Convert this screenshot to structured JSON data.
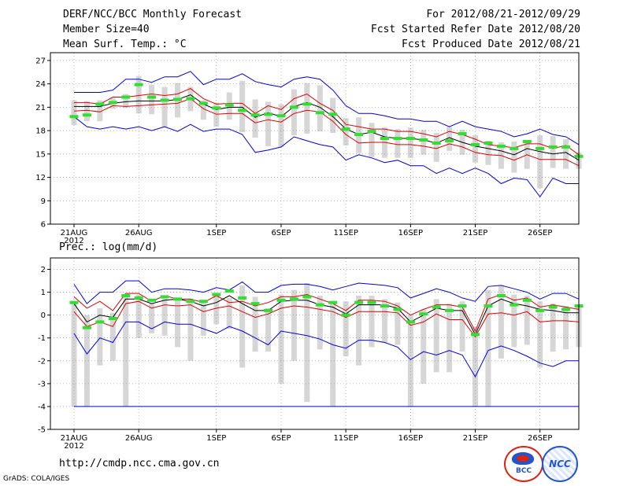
{
  "header": {
    "title": "DERF/NCC/BCC Monthly Forecast",
    "member_size": "Member Size=40",
    "variable": "Mean Surf. Temp.: °C",
    "forecast_period": "For 2012/08/21-2012/09/29",
    "started_refer": "Fcst Started Refer Date 2012/08/20",
    "produced": "Fcst Produced Date 2012/08/21"
  },
  "footer": {
    "url": "http://cmdp.ncc.cma.gov.cn",
    "credit": "GrADS: COLA/IGES",
    "logo_bcc": "BCC",
    "logo_ncc": "NCC"
  },
  "colors": {
    "box": "#d6d6d6",
    "ensemble_envelope": "#0000dd",
    "spread": "#dd0000",
    "mean": "#000000",
    "observed": "#33dd33",
    "grid": "#888888"
  },
  "chart_data": [
    {
      "type": "line",
      "title": "Mean Surf. Temp.: °C",
      "xlabel": "",
      "ylabel": "°C",
      "ylim": [
        6,
        28
      ],
      "yticks": [
        6,
        9,
        12,
        15,
        18,
        21,
        24,
        27
      ],
      "xticks": [
        {
          "day": 1,
          "label": "21AUG"
        },
        {
          "day": 6,
          "label": "26AUG"
        },
        {
          "day": 12,
          "label": "1SEP"
        },
        {
          "day": 17,
          "label": "6SEP"
        },
        {
          "day": 22,
          "label": "11SEP"
        },
        {
          "day": 27,
          "label": "16SEP"
        },
        {
          "day": 32,
          "label": "21SEP"
        },
        {
          "day": 37,
          "label": "26SEP"
        }
      ],
      "year_label": "2012",
      "grid": true,
      "days": [
        1,
        2,
        3,
        4,
        5,
        6,
        7,
        8,
        9,
        10,
        11,
        12,
        13,
        14,
        15,
        16,
        17,
        18,
        19,
        20,
        21,
        22,
        23,
        24,
        25,
        26,
        27,
        28,
        29,
        30,
        31,
        32,
        33,
        34,
        35,
        36,
        37,
        38,
        39,
        40
      ],
      "series": [
        {
          "name": "max",
          "values": [
            22.9,
            22.9,
            22.9,
            23.2,
            24.6,
            24.6,
            24.2,
            24.9,
            24.9,
            25.6,
            23.9,
            24.6,
            24.6,
            25.3,
            24.3,
            23.9,
            23.6,
            24.6,
            24.9,
            24.6,
            23.2,
            21.2,
            20.2,
            20.2,
            19.9,
            19.5,
            19.5,
            19.2,
            19.2,
            18.5,
            19.2,
            18.5,
            18.2,
            17.9,
            17.2,
            17.6,
            18.2,
            17.5,
            17.2,
            16.2
          ]
        },
        {
          "name": "upper",
          "values": [
            21.6,
            21.6,
            21.4,
            22.3,
            22.3,
            22.5,
            22.7,
            22.5,
            22.7,
            23.4,
            22.1,
            21.4,
            21.5,
            21.5,
            20.2,
            21.2,
            20.7,
            22.1,
            22.7,
            21.5,
            20.6,
            18.8,
            18.5,
            18.2,
            18.2,
            17.9,
            17.9,
            17.6,
            17.2,
            17.9,
            17.5,
            16.9,
            16.2,
            16.0,
            15.8,
            16.3,
            16.3,
            15.7,
            16.1,
            14.9
          ]
        },
        {
          "name": "mean",
          "values": [
            21.1,
            21.1,
            21.1,
            21.5,
            21.7,
            21.8,
            21.8,
            21.8,
            22.0,
            22.6,
            21.4,
            20.7,
            21.0,
            21.0,
            19.7,
            20.3,
            19.8,
            21.1,
            21.6,
            21.0,
            19.8,
            18.2,
            17.5,
            17.8,
            17.2,
            17.0,
            17.0,
            16.8,
            16.4,
            17.1,
            16.5,
            16.0,
            15.7,
            15.4,
            14.9,
            15.7,
            15.3,
            15.0,
            15.2,
            14.2
          ]
        },
        {
          "name": "lower",
          "values": [
            20.5,
            20.6,
            20.4,
            21.2,
            21.1,
            21.2,
            21.3,
            21.4,
            21.5,
            22.1,
            20.8,
            20.1,
            20.2,
            20.2,
            19.0,
            19.4,
            19.1,
            20.2,
            20.6,
            20.4,
            19.2,
            17.5,
            16.4,
            16.5,
            16.5,
            16.2,
            16.2,
            16.0,
            15.7,
            16.3,
            15.9,
            15.2,
            14.9,
            14.8,
            14.2,
            14.9,
            14.3,
            14.3,
            14.3,
            13.5
          ]
        },
        {
          "name": "min",
          "values": [
            19.8,
            18.5,
            18.2,
            18.5,
            18.2,
            18.5,
            18.0,
            18.5,
            17.9,
            18.8,
            17.9,
            18.2,
            18.2,
            17.5,
            15.2,
            15.5,
            15.9,
            17.2,
            16.7,
            16.2,
            15.9,
            14.2,
            14.9,
            14.5,
            13.9,
            14.2,
            13.5,
            13.5,
            12.5,
            13.2,
            12.5,
            13.2,
            12.5,
            11.2,
            11.9,
            11.7,
            9.5,
            11.9,
            11.2,
            11.2
          ]
        },
        {
          "name": "observed",
          "values": [
            19.8,
            20.0,
            21.4,
            21.6,
            22.3,
            23.9,
            22.3,
            21.9,
            22.0,
            22.1,
            21.5,
            20.9,
            21.3,
            20.6,
            20.0,
            20.1,
            19.9,
            21.0,
            21.4,
            20.3,
            20.1,
            18.2,
            17.5,
            17.9,
            17.0,
            17.0,
            17.0,
            16.8,
            16.4,
            16.7,
            17.6,
            16.2,
            16.4,
            16.0,
            15.7,
            16.6,
            15.7,
            15.9,
            15.9,
            14.7
          ]
        },
        {
          "name": "box_high",
          "values": [
            21.9,
            21.8,
            21.9,
            22.2,
            22.7,
            25.0,
            23.9,
            23.6,
            24.1,
            23.6,
            21.9,
            21.6,
            22.9,
            24.4,
            22.0,
            21.7,
            21.4,
            23.3,
            24.1,
            23.8,
            22.2,
            19.6,
            19.7,
            19.0,
            18.4,
            18.2,
            18.4,
            18.1,
            17.7,
            18.5,
            18.1,
            17.4,
            16.7,
            16.5,
            16.6,
            16.8,
            17.4,
            17.3,
            16.9,
            15.2
          ]
        },
        {
          "name": "box_low",
          "values": [
            18.7,
            19.2,
            19.2,
            20.8,
            20.9,
            20.2,
            20.1,
            18.4,
            19.7,
            20.5,
            19.4,
            18.5,
            19.4,
            17.8,
            17.1,
            16.0,
            15.9,
            17.4,
            17.6,
            17.9,
            17.7,
            16.1,
            15.1,
            14.6,
            14.5,
            14.5,
            14.5,
            14.9,
            14.0,
            15.4,
            14.9,
            13.9,
            13.6,
            13.1,
            12.6,
            13.1,
            10.6,
            13.2,
            13.1,
            13.1
          ]
        }
      ]
    },
    {
      "type": "line",
      "title": "Prec.: log(mm/d)",
      "xlabel": "",
      "ylabel": "log(mm/d)",
      "ylim": [
        -5,
        2.5
      ],
      "yticks": [
        -5,
        -4,
        -3,
        -2,
        -1,
        0,
        1,
        2
      ],
      "xticks": [
        {
          "day": 1,
          "label": "21AUG"
        },
        {
          "day": 6,
          "label": "26AUG"
        },
        {
          "day": 12,
          "label": "1SEP"
        },
        {
          "day": 17,
          "label": "6SEP"
        },
        {
          "day": 22,
          "label": "11SEP"
        },
        {
          "day": 27,
          "label": "16SEP"
        },
        {
          "day": 32,
          "label": "21SEP"
        },
        {
          "day": 37,
          "label": "26SEP"
        }
      ],
      "year_label": "2012",
      "grid": true,
      "days": [
        1,
        2,
        3,
        4,
        5,
        6,
        7,
        8,
        9,
        10,
        11,
        12,
        13,
        14,
        15,
        16,
        17,
        18,
        19,
        20,
        21,
        22,
        23,
        24,
        25,
        26,
        27,
        28,
        29,
        30,
        31,
        32,
        33,
        34,
        35,
        36,
        37,
        38,
        39,
        40
      ],
      "series": [
        {
          "name": "max",
          "values": [
            1.35,
            0.5,
            1.0,
            1.0,
            1.5,
            1.5,
            1.0,
            1.15,
            1.15,
            1.1,
            1.0,
            1.2,
            1.1,
            1.45,
            1.0,
            1.0,
            1.3,
            1.35,
            1.35,
            1.25,
            1.1,
            1.25,
            1.4,
            1.35,
            1.3,
            1.2,
            0.75,
            0.95,
            1.15,
            1.0,
            0.75,
            0.6,
            1.25,
            1.3,
            1.15,
            1.0,
            0.7,
            0.95,
            0.95,
            0.7
          ]
        },
        {
          "name": "upper",
          "values": [
            0.8,
            0.3,
            0.6,
            0.2,
            0.95,
            0.95,
            0.6,
            0.85,
            0.7,
            0.7,
            0.55,
            0.85,
            0.55,
            0.6,
            0.4,
            0.55,
            0.8,
            0.8,
            0.9,
            0.7,
            0.5,
            0.2,
            0.65,
            0.65,
            0.6,
            0.4,
            0.0,
            0.25,
            0.45,
            0.45,
            0.35,
            -0.7,
            0.7,
            0.9,
            0.65,
            0.75,
            0.35,
            0.45,
            0.35,
            0.25
          ]
        },
        {
          "name": "mean",
          "values": [
            0.5,
            -0.3,
            0.0,
            -0.1,
            0.7,
            0.7,
            0.5,
            0.65,
            0.7,
            0.6,
            0.4,
            0.55,
            0.85,
            0.5,
            0.2,
            0.2,
            0.6,
            0.65,
            0.65,
            0.45,
            0.35,
            0.05,
            0.45,
            0.45,
            0.45,
            0.3,
            -0.3,
            0.0,
            0.3,
            0.2,
            0.2,
            -0.85,
            0.4,
            0.7,
            0.5,
            0.4,
            0.25,
            0.2,
            0.1,
            0.1
          ]
        },
        {
          "name": "lower",
          "values": [
            0.15,
            -0.5,
            -0.3,
            -0.5,
            0.5,
            0.6,
            0.3,
            0.45,
            0.4,
            0.45,
            0.15,
            0.3,
            0.4,
            0.15,
            -0.1,
            0.05,
            0.3,
            0.4,
            0.35,
            0.25,
            0.15,
            -0.1,
            0.15,
            0.15,
            0.15,
            0.1,
            -0.45,
            -0.3,
            0.05,
            -0.2,
            -0.2,
            -0.95,
            0.05,
            0.1,
            0.0,
            0.15,
            -0.3,
            -0.25,
            -0.25,
            -0.3
          ]
        },
        {
          "name": "min",
          "values": [
            -0.8,
            -1.7,
            -1.0,
            -1.2,
            -0.3,
            -0.3,
            -0.6,
            -0.3,
            -0.4,
            -0.4,
            -0.6,
            -0.8,
            -0.5,
            -0.7,
            -1.0,
            -1.3,
            -0.7,
            -0.8,
            -0.9,
            -1.05,
            -1.3,
            -1.45,
            -1.1,
            -1.1,
            -1.2,
            -1.4,
            -1.95,
            -1.6,
            -1.75,
            -1.55,
            -1.75,
            -2.7,
            -1.55,
            -1.35,
            -1.55,
            -1.8,
            -2.1,
            -2.25,
            -2.0,
            -2.0
          ]
        },
        {
          "name": "observed",
          "values": [
            0.55,
            -0.55,
            -0.3,
            -0.15,
            0.85,
            0.75,
            0.65,
            0.8,
            0.7,
            0.6,
            0.6,
            0.9,
            1.05,
            0.75,
            0.5,
            0.2,
            0.65,
            0.7,
            0.8,
            0.45,
            0.55,
            0.0,
            0.55,
            0.55,
            0.4,
            0.25,
            -0.3,
            0.05,
            0.35,
            0.2,
            0.4,
            -0.85,
            0.4,
            0.85,
            0.45,
            0.65,
            0.2,
            0.35,
            0.25,
            0.4
          ]
        },
        {
          "name": "box_high",
          "values": [
            0.5,
            0.0,
            0.3,
            0.1,
            0.85,
            0.9,
            0.5,
            0.8,
            0.75,
            0.7,
            0.6,
            0.9,
            0.75,
            1.3,
            0.8,
            0.3,
            0.9,
            1.1,
            1.4,
            0.85,
            0.6,
            0.6,
            0.85,
            0.85,
            0.7,
            0.55,
            0.0,
            0.25,
            0.7,
            0.5,
            0.6,
            -0.5,
            1.1,
            1.3,
            0.9,
            0.85,
            0.6,
            0.5,
            0.4,
            0.35
          ]
        },
        {
          "name": "box_low",
          "values": [
            -4.0,
            -4.0,
            -2.2,
            -2.0,
            -4.0,
            -1.0,
            -0.8,
            -0.9,
            -1.4,
            -2.0,
            -0.9,
            -0.4,
            -0.6,
            -2.3,
            -1.6,
            -1.6,
            -3.0,
            -2.0,
            -3.8,
            -1.5,
            -4.0,
            -1.8,
            -2.2,
            -1.4,
            -1.2,
            -1.3,
            -4.0,
            -3.0,
            -2.5,
            -2.5,
            -1.6,
            -4.0,
            -4.0,
            -1.9,
            -1.4,
            -1.3,
            -2.3,
            -1.6,
            -1.5,
            -1.4
          ]
        }
      ],
      "floor": -4.0
    }
  ]
}
